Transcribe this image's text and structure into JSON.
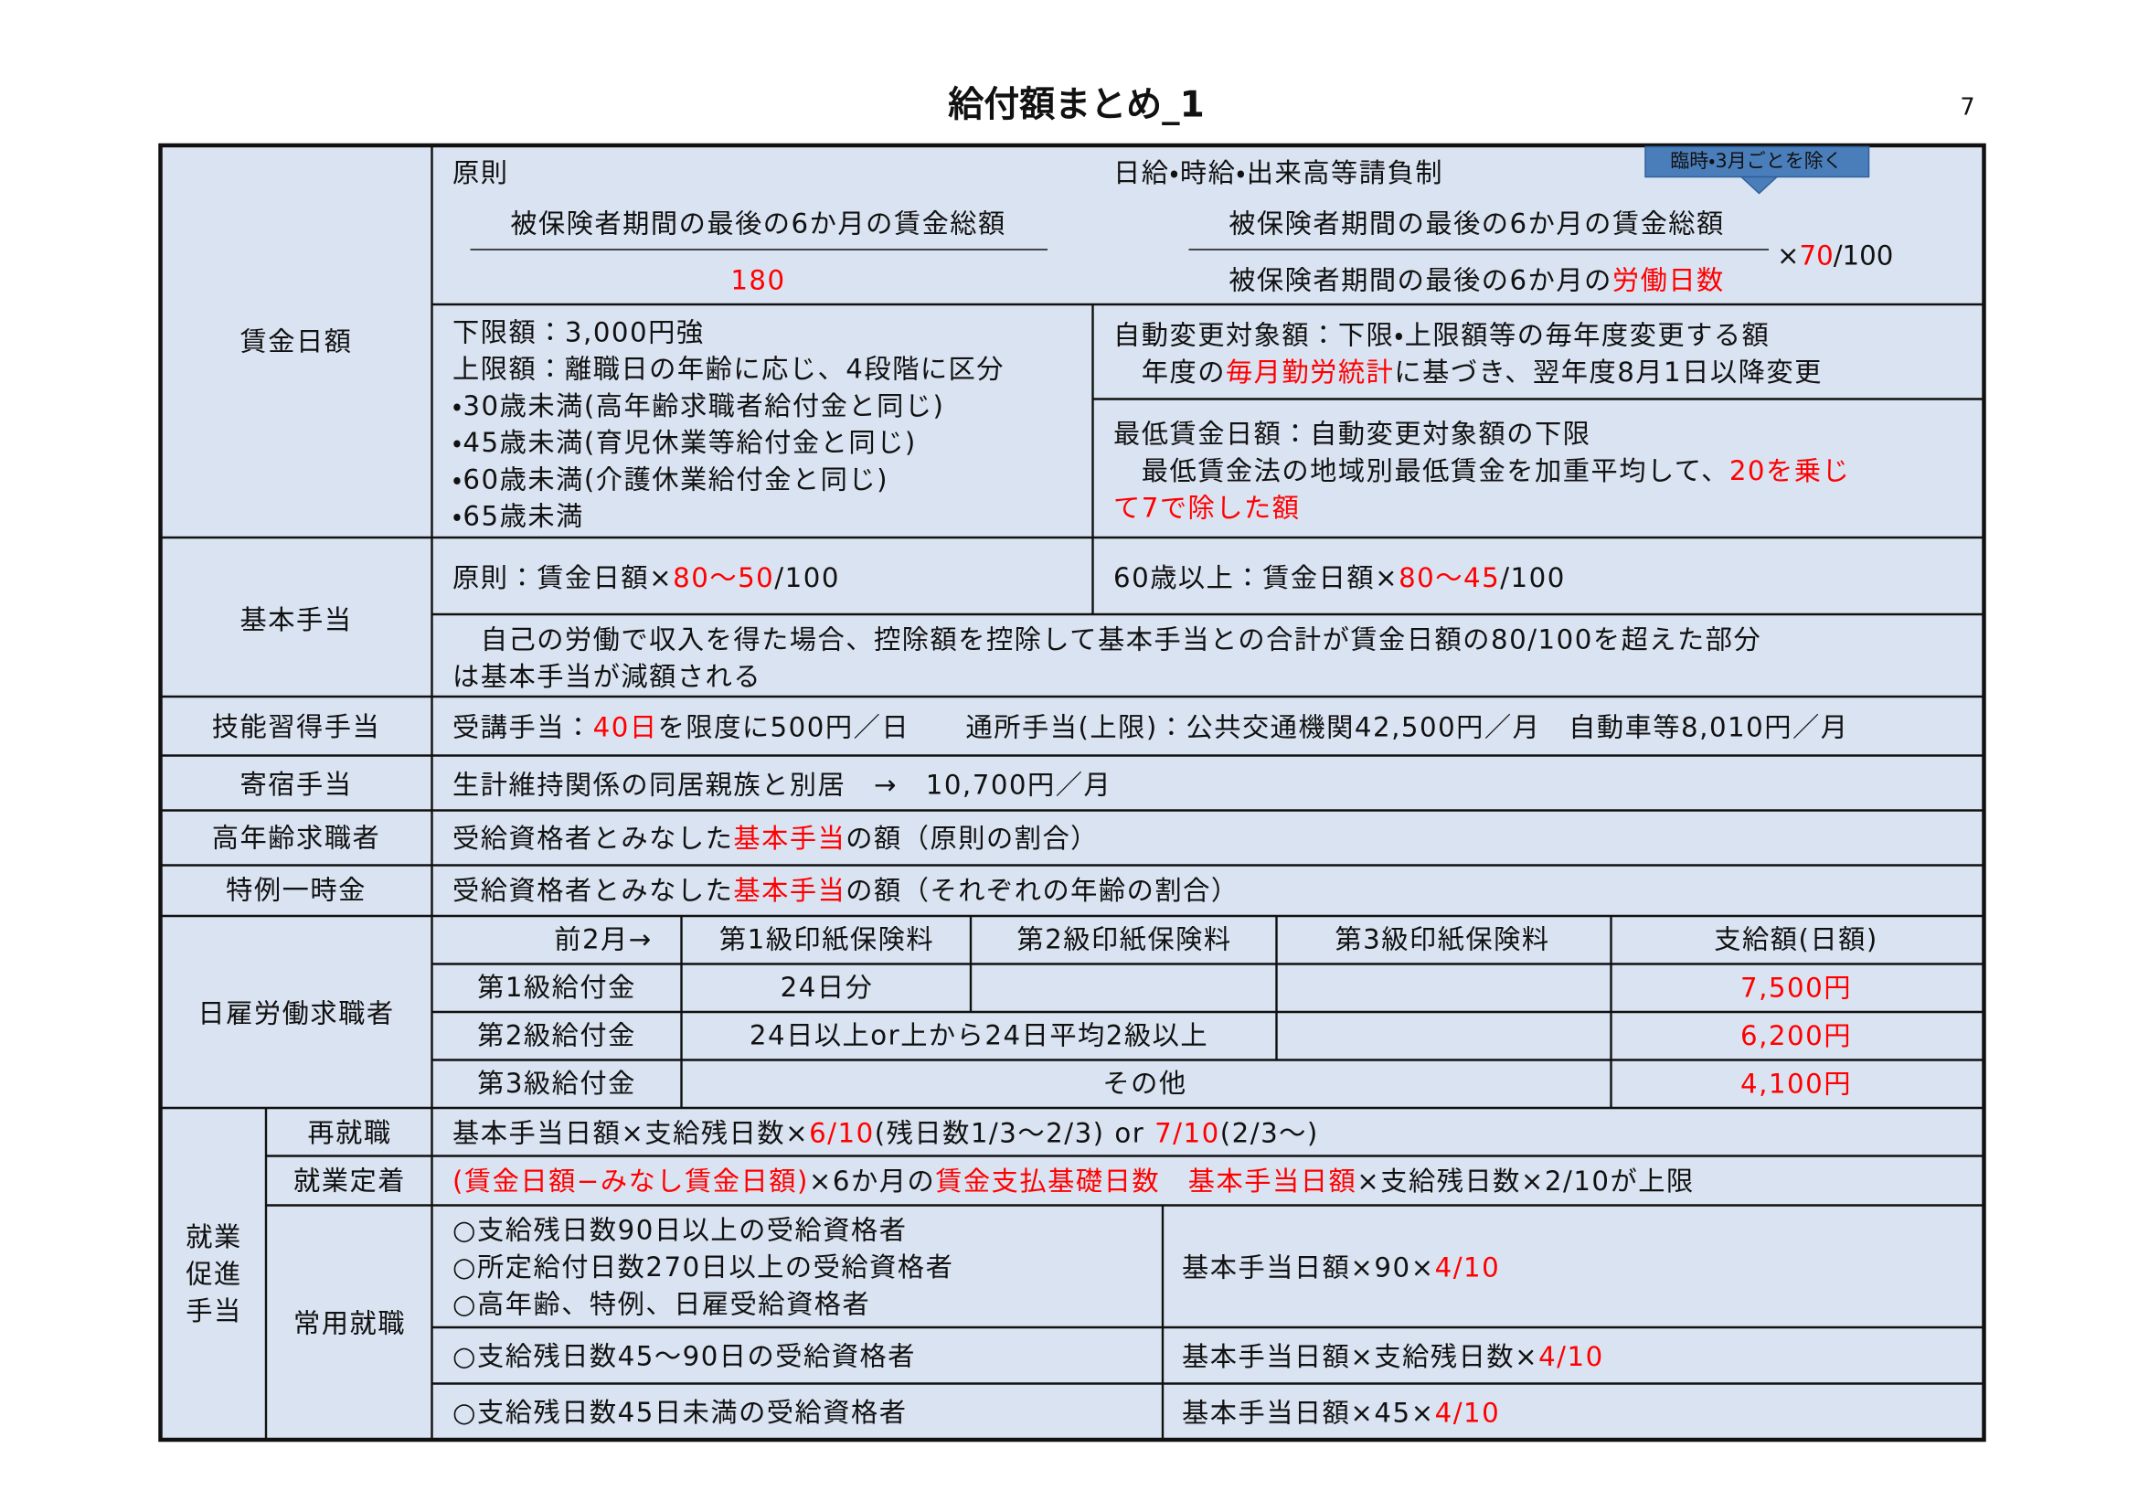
{
  "header": {
    "title": "給付額まとめ_1",
    "page_number": "7"
  },
  "wage_daily": {
    "label": "賃金日額",
    "principle": {
      "heading": "原則",
      "numerator": "被保険者期間の最後の6か月の賃金総額",
      "denominator": [
        {
          "text": "180",
          "color": "#ff0000"
        }
      ]
    },
    "piecework": {
      "heading": "日給・時給・出来高等請負制",
      "note": "臨時・3月ごとを除く",
      "numerator": "被保険者期間の最後の6か月の賃金総額",
      "denominator": [
        "被保険者期間の最後の6か月の",
        {
          "text": "労働日数",
          "color": "#ff0000"
        }
      ],
      "multiplier": [
        "×",
        {
          "text": "70",
          "color": "#ff0000"
        },
        "/100"
      ]
    },
    "limits": [
      [
        "下限額：3,000円強"
      ],
      [
        "上限額：離職日の年齢に応じ、4段階に区分"
      ],
      [
        "・30歳未満(高年齢求職者給付金と同じ)"
      ],
      [
        "・45歳未満(育児休業等給付金と同じ)"
      ],
      [
        "・60歳未満(介護休業給付金と同じ)"
      ],
      [
        "・65歳未満"
      ]
    ],
    "auto_adjust": [
      [
        "自動変更対象額：下限・上限額等の毎年度変更する額"
      ],
      [
        "　年度の",
        {
          "text": "毎月勤労統計",
          "color": "#ff0000"
        },
        "に基づき、翌年度8月1日以降変更"
      ]
    ],
    "minimum": [
      [
        "最低賃金日額：自動変更対象額の下限"
      ],
      [
        "　最低賃金法の地域別最低賃金を加重平均して、",
        {
          "text": "20を乗じ",
          "color": "#ff0000"
        }
      ],
      [
        {
          "text": "て7で除した額",
          "color": "#ff0000"
        }
      ]
    ]
  },
  "basic_allowance": {
    "label": "基本手当",
    "rule": [
      "原則：賃金日額×",
      {
        "text": "80～50",
        "color": "#ff0000"
      },
      "/100"
    ],
    "over_60": [
      "60歳以上：賃金日額×",
      {
        "text": "80～45",
        "color": "#ff0000"
      },
      "/100"
    ],
    "reduction": [
      [
        "　自己の労働で収入を得た場合、控除額を控除して基本手当との合計が賃金日額の80/100を超えた部分"
      ],
      [
        "は基本手当が減額される"
      ]
    ]
  },
  "skill_allowance": {
    "label": "技能習得手当",
    "text": [
      "受講手当：",
      {
        "text": "40日",
        "color": "#ff0000"
      },
      "を限度に500円／日　　通所手当(上限)：公共交通機関42,500円／月　自動車等8,010円／月"
    ]
  },
  "lodging_allowance": {
    "label": "寄宿手当",
    "text": [
      "生計維持関係の同居親族と別居　→　10,700円／月"
    ]
  },
  "elderly_job_seeker": {
    "label": "高年齢求職者",
    "text": [
      "受給資格者とみなした",
      {
        "text": "基本手当",
        "color": "#ff0000"
      },
      "の額（原則の割合）"
    ]
  },
  "special_lump_sum": {
    "label": "特例一時金",
    "text": [
      "受給資格者とみなした",
      {
        "text": "基本手当",
        "color": "#ff0000"
      },
      "の額（それぞれの年齢の割合）"
    ]
  },
  "day_laborer": {
    "label": "日雇労働求職者",
    "header": [
      "前2月→",
      "第1級印紙保険料",
      "第2級印紙保険料",
      "第3級印紙保険料",
      "支給額(日額)"
    ],
    "rows": [
      [
        "第1級給付金",
        "24日分",
        {
          "text": "7,500円",
          "color": "#ff0000"
        }
      ],
      [
        "第2級給付金",
        "24日以上or上から24日平均2級以上",
        {
          "text": "6,200円",
          "color": "#ff0000"
        }
      ],
      [
        "第3級給付金",
        "その他",
        {
          "text": "4,100円",
          "color": "#ff0000"
        }
      ]
    ]
  },
  "employment_promotion": {
    "label": [
      "就業",
      "促進",
      "手当"
    ],
    "reemployment": {
      "label": "再就職",
      "text": [
        "基本手当日額×支給残日数×",
        {
          "text": "6/10",
          "color": "#ff0000"
        },
        "(残日数1/3～2/3) or ",
        {
          "text": "7/10",
          "color": "#ff0000"
        },
        "(2/3～)"
      ]
    },
    "retention": {
      "label": "就業定着",
      "text": [
        {
          "text": "(賃金日額−みなし賃金日額)",
          "color": "#ff0000"
        },
        "×6か月の",
        {
          "text": "賃金支払基礎日数　基本手当日額",
          "color": "#ff0000"
        },
        "×支給残日数×2/10が上限"
      ]
    },
    "regular": {
      "label": "常用就職",
      "rows": [
        {
          "conditions": [
            "○支給残日数90日以上の受給資格者",
            "○所定給付日数270日以上の受給資格者",
            "○高年齢、特例、日雇受給資格者"
          ],
          "amount": [
            "基本手当日額×90×",
            {
              "text": "4/10",
              "color": "#ff0000"
            }
          ]
        },
        {
          "conditions": [
            "○支給残日数45～90日の受給資格者"
          ],
          "amount": [
            "基本手当日額×支給残日数×",
            {
              "text": "4/10",
              "color": "#ff0000"
            }
          ]
        },
        {
          "conditions": [
            "○支給残日数45日未満の受給資格者"
          ],
          "amount": [
            "基本手当日額×45×",
            {
              "text": "4/10",
              "color": "#ff0000"
            }
          ]
        }
      ]
    }
  }
}
